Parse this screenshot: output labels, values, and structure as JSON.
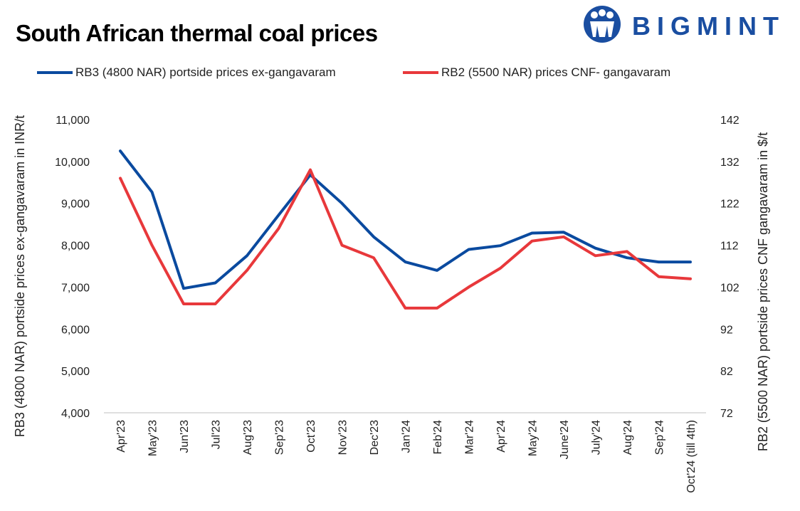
{
  "header": {
    "title": "South African thermal coal prices",
    "brand": "BIGMINT"
  },
  "colors": {
    "rb3": "#0a4a9f",
    "rb2": "#e8383b",
    "brand": "#1a4ea1"
  },
  "legend": {
    "rb3": "RB3 (4800 NAR) portside prices ex-gangavaram",
    "rb2": "RB2 (5500 NAR) prices CNF- gangavaram"
  },
  "chart_data": {
    "type": "line",
    "categories": [
      "Apr'23",
      "May'23",
      "Jun'23",
      "Jul'23",
      "Aug'23",
      "Sep'23",
      "Oct'23",
      "Nov'23",
      "Dec'23",
      "Jan'24",
      "Feb'24",
      "Mar'24",
      "Apr'24",
      "May'24",
      "June'24",
      "July'24",
      "Aug'24",
      "Sep'24",
      "Oct'24 (till 4th)"
    ],
    "series": [
      {
        "name": "RB3 (4800 NAR) portside prices ex-gangavaram",
        "axis": "left",
        "values": [
          10250,
          9270,
          6970,
          7100,
          7750,
          8720,
          9680,
          9000,
          8200,
          7600,
          7400,
          7900,
          7990,
          8290,
          8310,
          7930,
          7700,
          7600,
          7600
        ]
      },
      {
        "name": "RB2 (5500 NAR) prices CNF- gangavaram",
        "axis": "right",
        "values": [
          128,
          112,
          98,
          98,
          106,
          116,
          130,
          112,
          109,
          97,
          97,
          102,
          106.5,
          113,
          114,
          109.5,
          110.5,
          104.5,
          104
        ]
      }
    ],
    "y_left": {
      "label": "RB3 (4800 NAR) portside prices ex-gangavaram  in INR/t",
      "ylim": [
        4000,
        11000
      ],
      "ticks": [
        "4,000",
        "5,000",
        "6,000",
        "7,000",
        "8,000",
        "9,000",
        "10,000",
        "11,000"
      ]
    },
    "y_right": {
      "label": "RB2 (5500 NAR) portside prices CNF  gangavaram  in $/t",
      "ylim": [
        72,
        142
      ],
      "ticks": [
        "72",
        "82",
        "92",
        "102",
        "112",
        "122",
        "132",
        "142"
      ]
    },
    "grid": false,
    "legend_position": "top"
  }
}
